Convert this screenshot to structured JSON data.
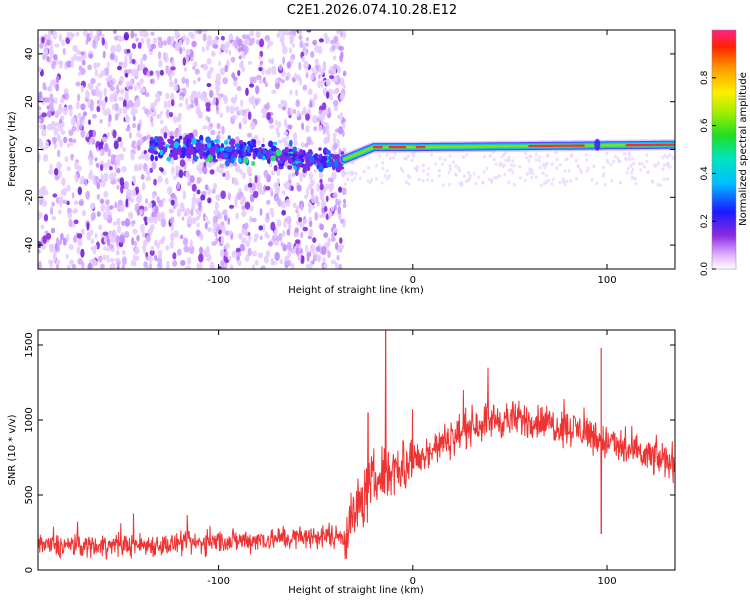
{
  "title": "C2E1.2026.074.10.28.E12",
  "chart_data": [
    {
      "type": "heatmap",
      "name": "spectrogram",
      "xlabel": "Height of straight line (km)",
      "ylabel": "Frequency (Hz)",
      "xlim": [
        -193,
        135
      ],
      "ylim": [
        -50,
        50
      ],
      "xticks": [
        -100,
        0,
        100
      ],
      "yticks": [
        -40,
        -20,
        0,
        20,
        40
      ],
      "colorbar": {
        "label": "Normalized spectral amplitude",
        "range": [
          0,
          1
        ],
        "ticks": [
          0.0,
          0.2,
          0.4,
          0.6,
          0.8
        ],
        "tick_labels": [
          "0.0",
          "0.2",
          "0.4",
          "0.6",
          "0.8"
        ]
      }
    },
    {
      "type": "line",
      "name": "snr",
      "xlabel": "Height of straight line (km)",
      "ylabel": "SNR (10 * v/v)",
      "xlim": [
        -193,
        135
      ],
      "ylim": [
        0,
        1600
      ],
      "xticks": [
        -100,
        0,
        100
      ],
      "yticks": [
        0,
        500,
        1000,
        1500
      ],
      "color": "#ee3333",
      "profile": {
        "x": [
          -193,
          -120,
          -100,
          -60,
          -35,
          -30,
          -20,
          -10,
          0,
          10,
          20,
          30,
          40,
          60,
          80,
          90,
          100,
          110,
          120,
          135
        ],
        "y": [
          160,
          170,
          190,
          215,
          230,
          380,
          600,
          680,
          720,
          800,
          880,
          960,
          1000,
          1000,
          950,
          920,
          850,
          800,
          760,
          720
        ]
      },
      "spikes": [
        {
          "x": -14,
          "y": 1600
        },
        {
          "x": -23,
          "y": 1050
        },
        {
          "x": 97,
          "y": 1480
        },
        {
          "x": 97,
          "y": 240
        }
      ]
    }
  ]
}
